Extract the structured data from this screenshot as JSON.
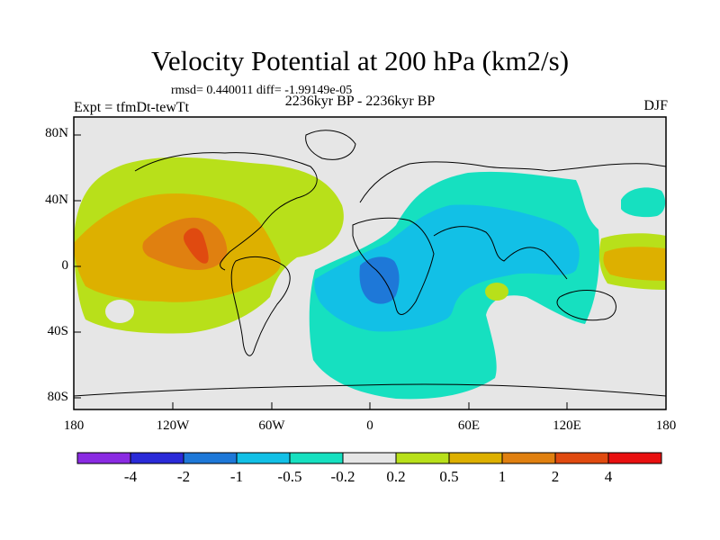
{
  "title": "Velocity Potential at 200 hPa (km2/s)",
  "stats": "rmsd= 0.440011 diff= -1.99149e-05",
  "experiment": "Expt = tfmDt-tewTt",
  "period": "2236kyr BP - 2236kyr BP",
  "season": "DJF",
  "lat_labels": [
    "80N",
    "40N",
    "0",
    "40S",
    "80S"
  ],
  "lon_labels": [
    "180",
    "120W",
    "60W",
    "0",
    "60E",
    "120E",
    "180"
  ],
  "colorbar": {
    "labels": [
      "-4",
      "-2",
      "-1",
      "-0.5",
      "-0.2",
      "0.2",
      "0.5",
      "1",
      "2",
      "4"
    ],
    "colors": [
      "#8a2be2",
      "#2a2ad8",
      "#1e78d8",
      "#12c0e6",
      "#16e0c0",
      "#e6e6e6",
      "#b8e01a",
      "#ddb000",
      "#e08010",
      "#e04a10",
      "#e81010"
    ]
  },
  "field_colors": {
    "background": "#e6e6e6",
    "pos_0_2": "#b8e01a",
    "pos_0_5": "#ddb000",
    "pos_1": "#e08010",
    "pos_2": "#e04a10",
    "neg_0_2": "#16e0c0",
    "neg_0_5": "#12c0e6",
    "neg_1": "#1e78d8"
  }
}
